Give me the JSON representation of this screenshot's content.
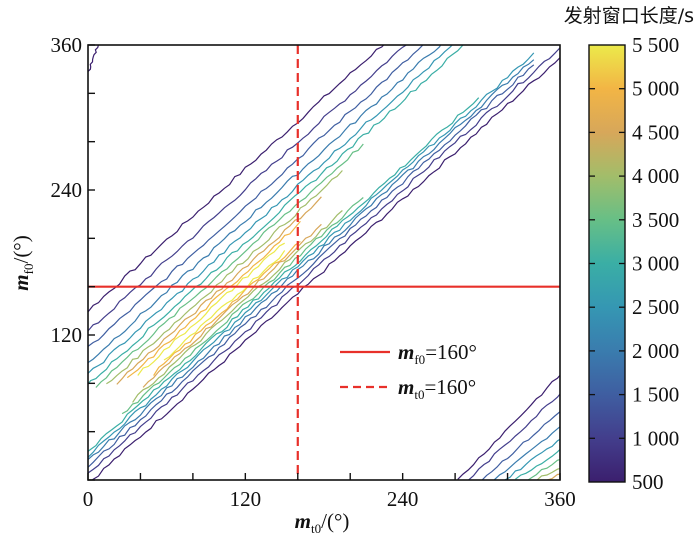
{
  "chart_data": {
    "type": "contour",
    "title": "",
    "xlabel": "m_t0 /(°)",
    "xlabel_main": "m",
    "xlabel_sub": "t0",
    "xlabel_unit": "/(°)",
    "ylabel_main": "m",
    "ylabel_sub": "f0",
    "ylabel_unit": "/(°)",
    "xlim": [
      0,
      360
    ],
    "ylim": [
      0,
      360
    ],
    "xticks": [
      0,
      120,
      240,
      360
    ],
    "xtick_labels": [
      "0",
      "120",
      "240",
      "360"
    ],
    "yticks": [
      0,
      120,
      240,
      360
    ],
    "ytick_labels": [
      "",
      "120",
      "240",
      "360"
    ],
    "minor_tick_step": 40,
    "colorbar": {
      "title": "发射窗口长度/s",
      "range": [
        500,
        5500
      ],
      "ticks": [
        500,
        1000,
        1500,
        2000,
        2500,
        3000,
        3500,
        4000,
        4500,
        5000,
        5500
      ],
      "tick_labels": [
        "500",
        "1 000",
        "1 500",
        "2 000",
        "2 500",
        "3 000",
        "3 500",
        "4 000",
        "4 500",
        "5 000",
        "5 500"
      ],
      "colors": [
        "#3b1f6e",
        "#433e8c",
        "#3f5ea1",
        "#3a7cae",
        "#3597b3",
        "#3aaea5",
        "#67bf86",
        "#a2bd6a",
        "#d7a75a",
        "#f2b545",
        "#ecea4a"
      ]
    },
    "contour_levels": [
      500,
      1000,
      1500,
      2000,
      2500,
      3000,
      3500,
      4000,
      4500,
      5000,
      5500
    ],
    "description": "Diagonal ridge band of launch window length along m_f0 ≈ m_t0 + offset, peaking (~5500 s) near m_t0 60–120°, m_f0 80–150°; secondary region at bottom-right corner (m_t0 > 280°, m_f0 < 100°).",
    "reference_lines": [
      {
        "label_main": "m",
        "label_sub": "f0",
        "label_value": "=160°",
        "orientation": "horizontal",
        "value": 160,
        "style": "solid",
        "color": "#e8302a"
      },
      {
        "label_main": "m",
        "label_sub": "t0",
        "label_value": "=160°",
        "orientation": "vertical",
        "value": 160,
        "style": "dashed",
        "color": "#e8302a"
      }
    ],
    "legend_position": "lower-center-right"
  }
}
